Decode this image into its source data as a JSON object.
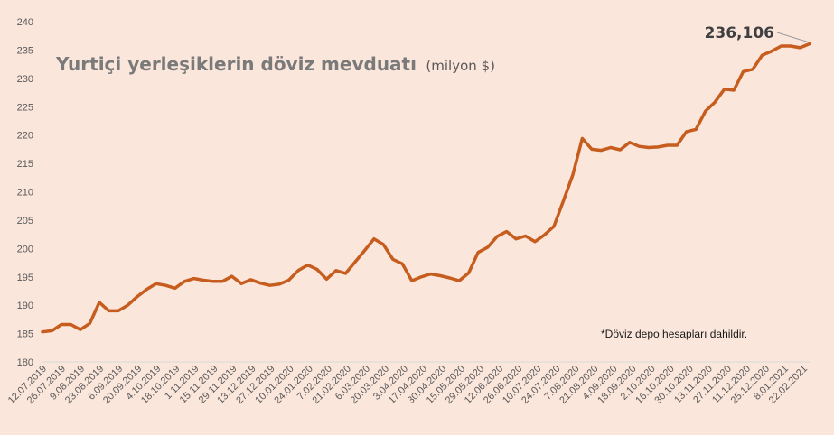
{
  "chart_data": {
    "type": "line",
    "title": "Yurtiçi yerleşiklerin döviz mevduatı",
    "title_unit": "(milyon $)",
    "note": "*Döviz depo hesapları dahildir.",
    "last_value_label": "236,106",
    "ylim": [
      180,
      240
    ],
    "yticks": [
      "180",
      "185",
      "190",
      "195",
      "200",
      "205",
      "210",
      "215",
      "220",
      "225",
      "230",
      "235",
      "240"
    ],
    "grid": false,
    "line_color": "#c65d1e",
    "x_tick_labels": [
      "12.07.2019",
      "26.07.2019",
      "9.08.2019",
      "23.08.2019",
      "6.09.2019",
      "20.09.2019",
      "4.10.2019",
      "18.10.2019",
      "1.11.2019",
      "15.11.2019",
      "29.11.2019",
      "13.12.2019",
      "27.12.2019",
      "10.01.2020",
      "24.01.2020",
      "7.02.2020",
      "21.02.2020",
      "6.03.2020",
      "20.03.2020",
      "3.04.2020",
      "17.04.2020",
      "30.04.2020",
      "15.05.2020",
      "29.05.2020",
      "12.06.2020",
      "26.06.2020",
      "10.07.2020",
      "24.07.2020",
      "7.08.2020",
      "21.08.2020",
      "4.09.2020",
      "18.09.2020",
      "2.10.2020",
      "16.10.2020",
      "30.10.2020",
      "13.11.2020",
      "27.11.2020",
      "11.12.2020",
      "25.12.2020",
      "8.01.2021",
      "22.02.2021"
    ],
    "series": [
      {
        "values": [
          185.3,
          185.5,
          186.6,
          186.6,
          185.7,
          186.8,
          190.5,
          189.0,
          189.0,
          190.0,
          191.5,
          192.8,
          193.8,
          193.5,
          193.0,
          194.2,
          194.7,
          194.4,
          194.2,
          194.2,
          195.1,
          193.8,
          194.5,
          193.9,
          193.5,
          193.7,
          194.4,
          196.1,
          197.1,
          196.3,
          194.6,
          196.1,
          195.6,
          197.6,
          199.6,
          201.7,
          200.7,
          198.1,
          197.3,
          194.3,
          195.0,
          195.5,
          195.2,
          194.8,
          194.3,
          195.7,
          199.3,
          200.2,
          202.1,
          203.0,
          201.7,
          202.2,
          201.2,
          202.4,
          203.9,
          208.4,
          213.0,
          219.4,
          217.5,
          217.3,
          217.8,
          217.4,
          218.7,
          218.0,
          217.8,
          217.9,
          218.2,
          218.2,
          220.6,
          221.0,
          224.2,
          225.8,
          228.1,
          227.9,
          231.2,
          231.6,
          234.1,
          234.8,
          235.7,
          235.7,
          235.4,
          236.1
        ]
      }
    ]
  }
}
